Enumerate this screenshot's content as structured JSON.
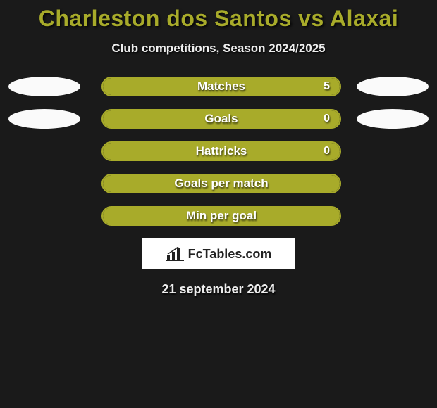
{
  "title": "Charleston dos Santos vs Alaxai",
  "subtitle": "Club competitions, Season 2024/2025",
  "colors": {
    "background": "#1a1a1a",
    "accent": "#a8ab2a",
    "badge": "#fafafa",
    "text": "#eeeeee"
  },
  "stats": [
    {
      "label": "Matches",
      "value": "5",
      "fill_pct": 100,
      "show_value": true,
      "badges": true
    },
    {
      "label": "Goals",
      "value": "0",
      "fill_pct": 100,
      "show_value": true,
      "badges": true
    },
    {
      "label": "Hattricks",
      "value": "0",
      "fill_pct": 100,
      "show_value": true,
      "badges": false
    },
    {
      "label": "Goals per match",
      "value": "",
      "fill_pct": 100,
      "show_value": false,
      "badges": false
    },
    {
      "label": "Min per goal",
      "value": "",
      "fill_pct": 100,
      "show_value": false,
      "badges": false
    }
  ],
  "logo": {
    "brand": "FcTables.com"
  },
  "date": "21 september 2024"
}
